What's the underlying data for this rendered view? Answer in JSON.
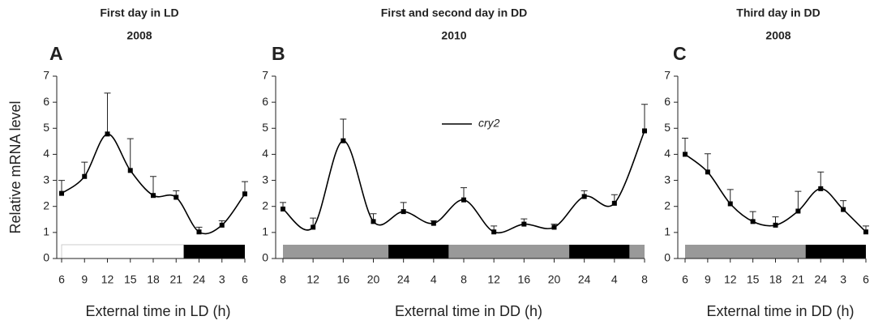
{
  "chart_data": [
    {
      "type": "line",
      "title": "First day in LD",
      "subtitle": "2008",
      "panel_label": "A",
      "y_label": "Relative mRNA level",
      "x_label": "External time in LD (h)",
      "x": [
        0,
        3,
        6,
        9,
        12,
        15,
        18,
        21,
        24
      ],
      "xlim": [
        0,
        24
      ],
      "xticks": [
        {
          "value": 0,
          "label": "6"
        },
        {
          "value": 3,
          "label": "9"
        },
        {
          "value": 6,
          "label": "12"
        },
        {
          "value": 9,
          "label": "15"
        },
        {
          "value": 12,
          "label": "18"
        },
        {
          "value": 15,
          "label": "21"
        },
        {
          "value": 18,
          "label": "24"
        },
        {
          "value": 21,
          "label": "3"
        },
        {
          "value": 24,
          "label": "6"
        }
      ],
      "ylim": [
        0,
        7
      ],
      "yticks": [
        0,
        1,
        2,
        3,
        4,
        5,
        6,
        7
      ],
      "series": [
        {
          "color": "#000000",
          "values": [
            2.5,
            3.15,
            4.78,
            3.38,
            2.42,
            2.35,
            1.02,
            1.28,
            2.48
          ],
          "errors": [
            0.5,
            0.55,
            1.57,
            1.22,
            0.73,
            0.25,
            0.18,
            0.17,
            0.47
          ]
        }
      ],
      "photoperiod": [
        {
          "from": 0,
          "to": 16,
          "color": "#ffffff"
        },
        {
          "from": 16,
          "to": 24,
          "color": "#000000"
        }
      ]
    },
    {
      "type": "line",
      "title": "First and second day in DD",
      "subtitle": "2010",
      "panel_label": "B",
      "x_label": "External time in DD (h)",
      "x": [
        0,
        4,
        8,
        12,
        16,
        20,
        24,
        28,
        32,
        36,
        40,
        44,
        48
      ],
      "xlim": [
        0,
        48
      ],
      "xticks": [
        {
          "value": 0,
          "label": "8"
        },
        {
          "value": 4,
          "label": "12"
        },
        {
          "value": 8,
          "label": "16"
        },
        {
          "value": 12,
          "label": "20"
        },
        {
          "value": 16,
          "label": "24"
        },
        {
          "value": 20,
          "label": "4"
        },
        {
          "value": 24,
          "label": "8"
        },
        {
          "value": 28,
          "label": "12"
        },
        {
          "value": 32,
          "label": "16"
        },
        {
          "value": 36,
          "label": "20"
        },
        {
          "value": 40,
          "label": "24"
        },
        {
          "value": 44,
          "label": "4"
        },
        {
          "value": 48,
          "label": "8"
        }
      ],
      "ylim": [
        0,
        7
      ],
      "yticks": [
        0,
        1,
        2,
        3,
        4,
        5,
        6,
        7
      ],
      "series": [
        {
          "name": "cry2",
          "color": "#000000",
          "values": [
            1.9,
            1.2,
            4.52,
            1.42,
            1.8,
            1.35,
            2.25,
            1.02,
            1.32,
            1.2,
            2.38,
            2.12,
            4.9
          ],
          "errors": [
            0.25,
            0.35,
            0.83,
            0.3,
            0.35,
            0.1,
            0.47,
            0.23,
            0.2,
            0.12,
            0.22,
            0.33,
            1.02
          ]
        }
      ],
      "photoperiod": [
        {
          "from": 0,
          "to": 14,
          "color": "#999999"
        },
        {
          "from": 14,
          "to": 22,
          "color": "#000000"
        },
        {
          "from": 22,
          "to": 38,
          "color": "#999999"
        },
        {
          "from": 38,
          "to": 46,
          "color": "#000000"
        },
        {
          "from": 46,
          "to": 48,
          "color": "#999999"
        }
      ]
    },
    {
      "type": "line",
      "title": "Third day in DD",
      "subtitle": "2008",
      "panel_label": "C",
      "x_label": "External time in DD (h)",
      "x": [
        0,
        3,
        6,
        9,
        12,
        15,
        18,
        21,
        24
      ],
      "xlim": [
        0,
        24
      ],
      "xticks": [
        {
          "value": 0,
          "label": "6"
        },
        {
          "value": 3,
          "label": "9"
        },
        {
          "value": 6,
          "label": "12"
        },
        {
          "value": 9,
          "label": "15"
        },
        {
          "value": 12,
          "label": "18"
        },
        {
          "value": 15,
          "label": "21"
        },
        {
          "value": 18,
          "label": "24"
        },
        {
          "value": 21,
          "label": "3"
        },
        {
          "value": 24,
          "label": "6"
        }
      ],
      "ylim": [
        0,
        7
      ],
      "yticks": [
        0,
        1,
        2,
        3,
        4,
        5,
        6,
        7
      ],
      "series": [
        {
          "color": "#000000",
          "values": [
            4.0,
            3.32,
            2.1,
            1.42,
            1.28,
            1.82,
            2.68,
            1.88,
            1.02
          ],
          "errors": [
            0.62,
            0.7,
            0.55,
            0.38,
            0.32,
            0.76,
            0.64,
            0.34,
            0.23
          ]
        }
      ],
      "photoperiod": [
        {
          "from": 0,
          "to": 16,
          "color": "#999999"
        },
        {
          "from": 16,
          "to": 24,
          "color": "#000000"
        }
      ]
    }
  ]
}
